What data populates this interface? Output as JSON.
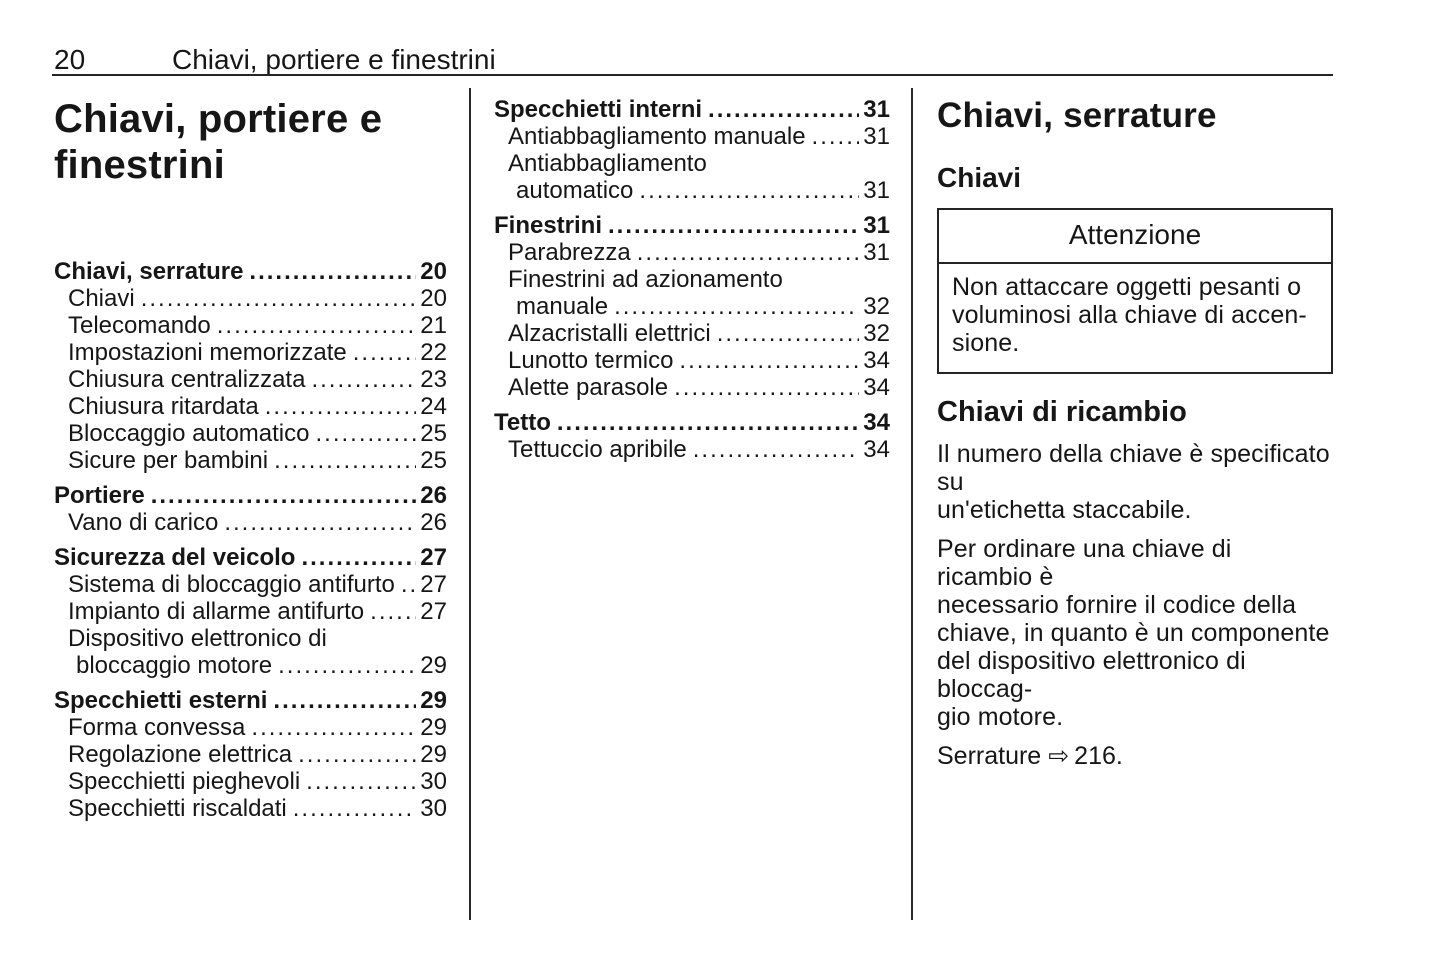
{
  "header": {
    "page_number": "20",
    "title": "Chiavi, portiere e finestrini"
  },
  "col1": {
    "chapter_title": "Chiavi, portiere e\nfinestrini",
    "toc": [
      {
        "label": "Chiavi, serrature",
        "page": "20"
      },
      {
        "label": "Chiavi",
        "page": "20"
      },
      {
        "label": "Telecomando",
        "page": "21"
      },
      {
        "label": "Impostazioni memorizzate",
        "page": "22"
      },
      {
        "label": "Chiusura centralizzata",
        "page": "23"
      },
      {
        "label": "Chiusura ritardata",
        "page": "24"
      },
      {
        "label": "Bloccaggio automatico",
        "page": "25"
      },
      {
        "label": "Sicure per bambini",
        "page": "25"
      },
      {
        "label": "Portiere",
        "page": "26"
      },
      {
        "label": "Vano di carico",
        "page": "26"
      },
      {
        "label": "Sicurezza del veicolo",
        "page": "27"
      },
      {
        "label": "Sistema di bloccaggio antifurto",
        "page": "27"
      },
      {
        "label": "Impianto di allarme antifurto",
        "page": "27"
      },
      {
        "label": "Dispositivo elettronico di"
      },
      {
        "label": "bloccaggio motore",
        "page": "29"
      },
      {
        "label": "Specchietti esterni",
        "page": "29"
      },
      {
        "label": "Forma convessa",
        "page": "29"
      },
      {
        "label": "Regolazione elettrica",
        "page": "29"
      },
      {
        "label": "Specchietti pieghevoli",
        "page": "30"
      },
      {
        "label": "Specchietti riscaldati",
        "page": "30"
      }
    ]
  },
  "col2": {
    "toc": [
      {
        "label": "Specchietti interni",
        "page": "31"
      },
      {
        "label": "Antiabbagliamento manuale",
        "page": "31"
      },
      {
        "label": "Antiabbagliamento"
      },
      {
        "label": "automatico",
        "page": "31"
      },
      {
        "label": "Finestrini",
        "page": "31"
      },
      {
        "label": "Parabrezza",
        "page": "31"
      },
      {
        "label": "Finestrini ad azionamento"
      },
      {
        "label": "manuale",
        "page": "32"
      },
      {
        "label": "Alzacristalli elettrici",
        "page": "32"
      },
      {
        "label": "Lunotto termico",
        "page": "34"
      },
      {
        "label": "Alette parasole",
        "page": "34"
      },
      {
        "label": "Tetto",
        "page": "34"
      },
      {
        "label": "Tettuccio apribile",
        "page": "34"
      }
    ]
  },
  "col3": {
    "section_heading": "Chiavi, serrature",
    "sub_heading": "Chiavi",
    "caution": {
      "title": "Attenzione",
      "body": "Non attaccare oggetti pesanti o\nvoluminosi alla chiave di accen-\nsione."
    },
    "spare_keys_heading": "Chiavi di ricambio",
    "paragraph1": "Il numero della chiave è specificato su\nun'etichetta staccabile.",
    "paragraph2": "Per ordinare una chiave di ricambio è\nnecessario fornire il codice della\nchiave, in quanto è un componente\ndel dispositivo elettronico di bloccag-\ngio motore.",
    "cross_reference": {
      "label": "Serrature",
      "arrow": "⇨",
      "page": "216."
    }
  },
  "colors": {
    "background": "#ffffff",
    "text": "#161616",
    "rule": "#242424"
  }
}
